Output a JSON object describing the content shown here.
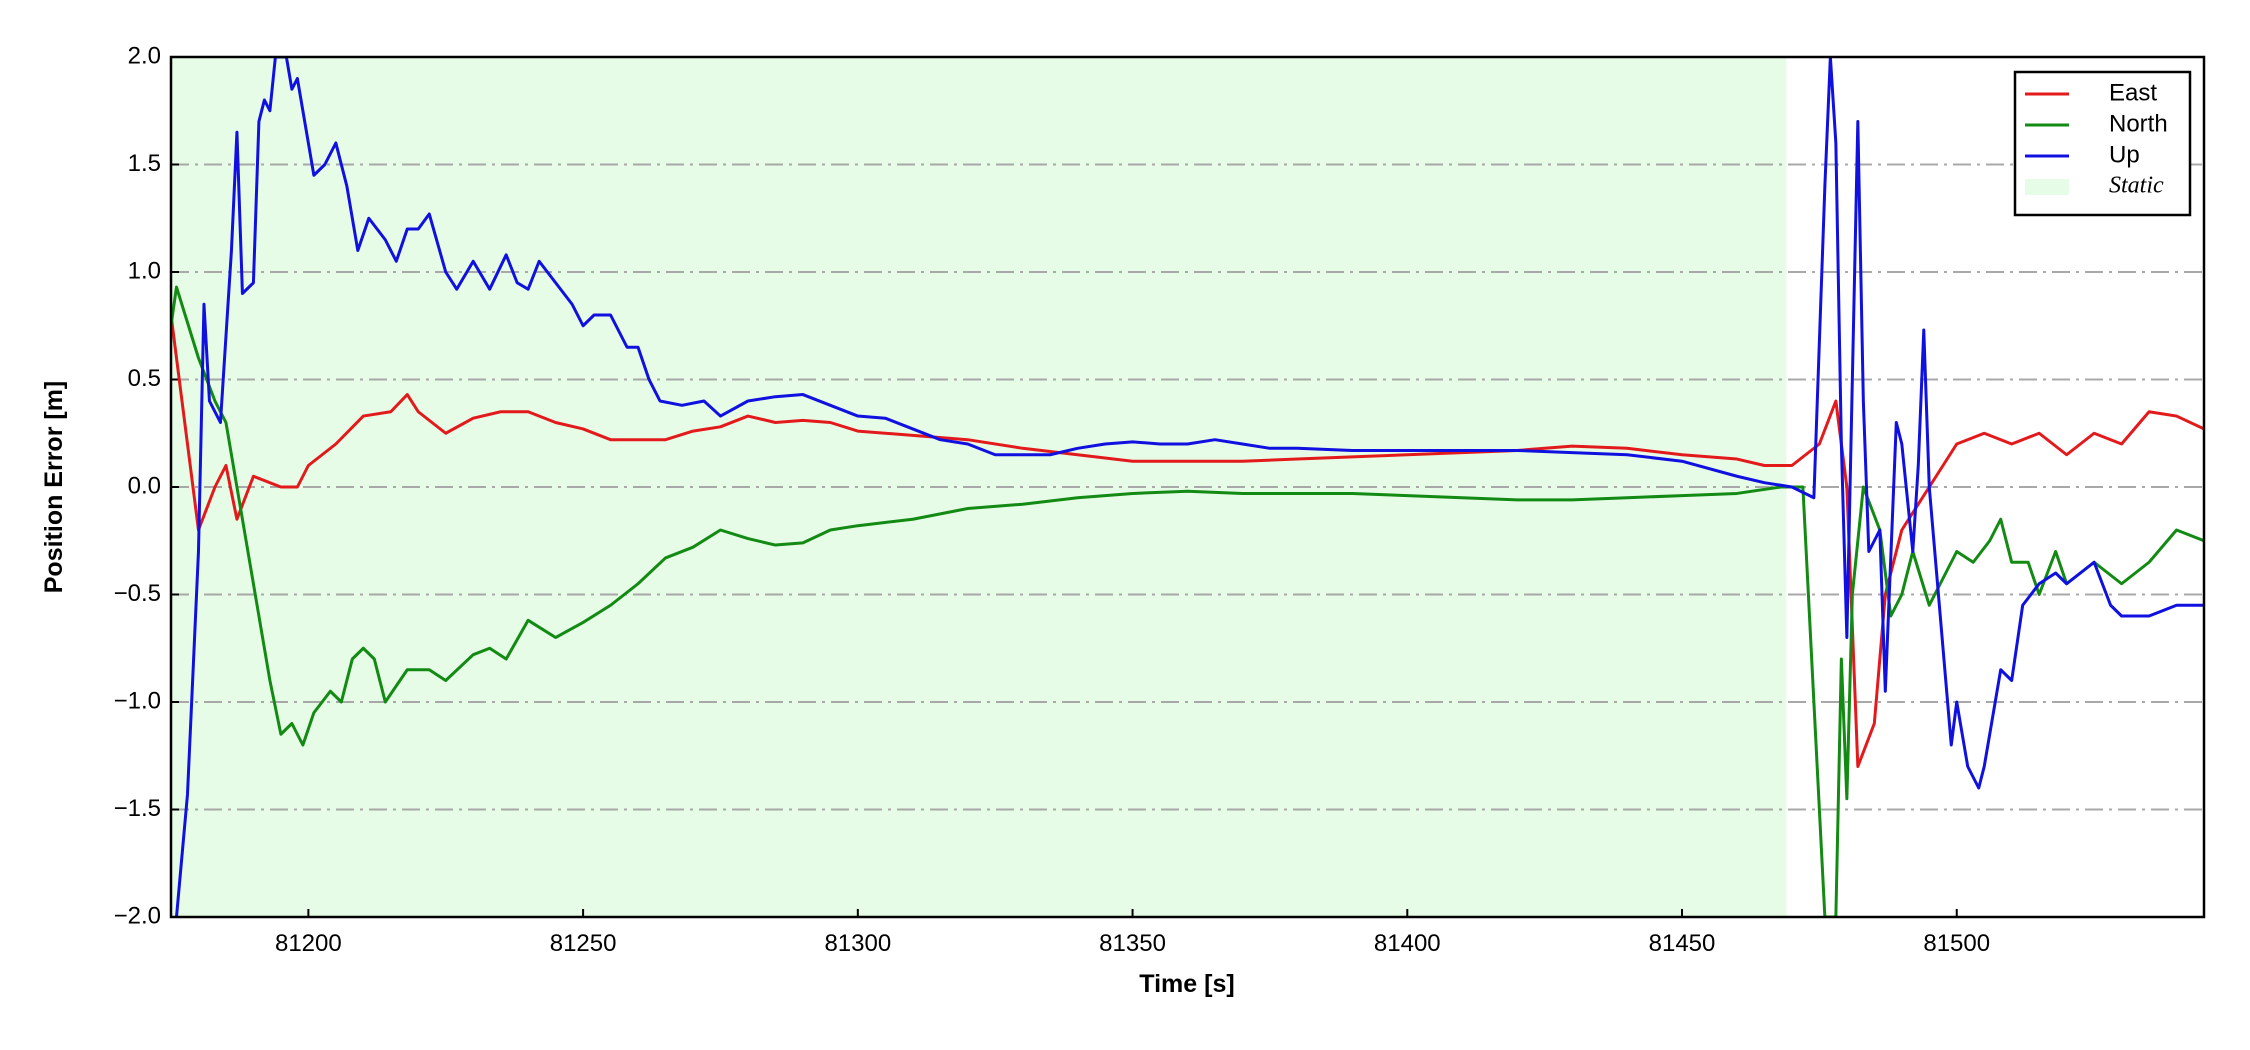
{
  "chart_data": {
    "type": "line",
    "xlabel": "Time [s]",
    "ylabel": "Position Error [m]",
    "xlim": [
      81175,
      81545
    ],
    "xticks": [
      81200,
      81250,
      81300,
      81350,
      81400,
      81450,
      81500
    ],
    "ylim": [
      -2,
      2
    ],
    "yticks": [
      {
        "value": -2,
        "label": "−2.0"
      },
      {
        "value": -1.5,
        "label": "−1.5"
      },
      {
        "value": -1,
        "label": "−1.0"
      },
      {
        "value": -0.5,
        "label": "−0.5"
      },
      {
        "value": 0,
        "label": "0.0"
      },
      {
        "value": 0.5,
        "label": "0.5"
      },
      {
        "value": 1,
        "label": "1.0"
      },
      {
        "value": 1.5,
        "label": "1.5"
      },
      {
        "value": 2,
        "label": "2.0"
      }
    ],
    "grid": true,
    "legend": "upper right",
    "static_region": {
      "name": "Static",
      "span": [
        81175,
        81469
      ],
      "color": "#e6fce6"
    },
    "series": [
      {
        "name": "East",
        "color": "#e31a1c",
        "x": [
          81175,
          81177,
          81180,
          81183,
          81185,
          81187,
          81190,
          81195,
          81198,
          81200,
          81205,
          81210,
          81215,
          81218,
          81220,
          81225,
          81230,
          81235,
          81240,
          81245,
          81250,
          81255,
          81260,
          81265,
          81270,
          81275,
          81280,
          81285,
          81290,
          81295,
          81300,
          81310,
          81320,
          81330,
          81340,
          81350,
          81360,
          81370,
          81380,
          81390,
          81400,
          81410,
          81420,
          81430,
          81440,
          81450,
          81460,
          81465,
          81470,
          81475,
          81478,
          81480,
          81482,
          81485,
          81487,
          81490,
          81495,
          81500,
          81505,
          81510,
          81515,
          81520,
          81525,
          81530,
          81535,
          81540,
          81545
        ],
        "values": [
          0.8,
          0.4,
          -0.2,
          0.0,
          0.1,
          -0.15,
          0.05,
          0.0,
          0.0,
          0.1,
          0.2,
          0.33,
          0.35,
          0.43,
          0.35,
          0.25,
          0.32,
          0.35,
          0.35,
          0.3,
          0.27,
          0.22,
          0.22,
          0.22,
          0.26,
          0.28,
          0.33,
          0.3,
          0.31,
          0.3,
          0.26,
          0.24,
          0.22,
          0.18,
          0.15,
          0.12,
          0.12,
          0.12,
          0.13,
          0.14,
          0.15,
          0.16,
          0.17,
          0.19,
          0.18,
          0.15,
          0.13,
          0.1,
          0.1,
          0.2,
          0.4,
          0.0,
          -1.3,
          -1.1,
          -0.5,
          -0.2,
          0.0,
          0.2,
          0.25,
          0.2,
          0.25,
          0.15,
          0.25,
          0.2,
          0.35,
          0.33,
          0.27
        ]
      },
      {
        "name": "North",
        "color": "#138a13",
        "x": [
          81175,
          81176,
          81180,
          81183,
          81185,
          81187,
          81189,
          81191,
          81193,
          81195,
          81197,
          81199,
          81201,
          81204,
          81206,
          81208,
          81210,
          81212,
          81214,
          81218,
          81222,
          81225,
          81230,
          81233,
          81236,
          81240,
          81245,
          81250,
          81255,
          81260,
          81265,
          81270,
          81275,
          81280,
          81285,
          81290,
          81295,
          81300,
          81310,
          81320,
          81330,
          81340,
          81350,
          81360,
          81370,
          81380,
          81390,
          81400,
          81410,
          81420,
          81430,
          81440,
          81450,
          81460,
          81468,
          81472,
          81474,
          81476,
          81478,
          81479,
          81480,
          81481,
          81483,
          81486,
          81488,
          81490,
          81492,
          81495,
          81498,
          81500,
          81503,
          81506,
          81508,
          81510,
          81513,
          81515,
          81518,
          81520,
          81525,
          81530,
          81535,
          81540,
          81545
        ],
        "values": [
          0.75,
          0.93,
          0.6,
          0.4,
          0.3,
          0.0,
          -0.3,
          -0.6,
          -0.9,
          -1.15,
          -1.1,
          -1.2,
          -1.05,
          -0.95,
          -1.0,
          -0.8,
          -0.75,
          -0.8,
          -1.0,
          -0.85,
          -0.85,
          -0.9,
          -0.78,
          -0.75,
          -0.8,
          -0.62,
          -0.7,
          -0.63,
          -0.55,
          -0.45,
          -0.33,
          -0.28,
          -0.2,
          -0.24,
          -0.27,
          -0.26,
          -0.2,
          -0.18,
          -0.15,
          -0.1,
          -0.08,
          -0.05,
          -0.03,
          -0.02,
          -0.03,
          -0.03,
          -0.03,
          -0.04,
          -0.05,
          -0.06,
          -0.06,
          -0.05,
          -0.04,
          -0.03,
          0.0,
          0.0,
          -1.0,
          -2.0,
          -2.0,
          -0.8,
          -1.45,
          -0.5,
          0.0,
          -0.2,
          -0.6,
          -0.5,
          -0.3,
          -0.55,
          -0.4,
          -0.3,
          -0.35,
          -0.25,
          -0.15,
          -0.35,
          -0.35,
          -0.5,
          -0.3,
          -0.45,
          -0.35,
          -0.45,
          -0.35,
          -0.2,
          -0.25
        ]
      },
      {
        "name": "Up",
        "color": "#1010e0",
        "x": [
          81176,
          81178,
          81180,
          81181,
          81182,
          81184,
          81186,
          81187,
          81188,
          81190,
          81191,
          81192,
          81193,
          81194,
          81196,
          81197,
          81198,
          81199,
          81201,
          81203,
          81205,
          81207,
          81209,
          81211,
          81214,
          81216,
          81218,
          81220,
          81222,
          81225,
          81227,
          81230,
          81233,
          81236,
          81238,
          81240,
          81242,
          81245,
          81248,
          81250,
          81252,
          81255,
          81258,
          81260,
          81262,
          81264,
          81268,
          81272,
          81275,
          81280,
          81285,
          81290,
          81295,
          81300,
          81305,
          81310,
          81315,
          81320,
          81325,
          81330,
          81335,
          81340,
          81345,
          81350,
          81355,
          81360,
          81365,
          81370,
          81375,
          81380,
          81390,
          81400,
          81410,
          81420,
          81430,
          81440,
          81450,
          81460,
          81465,
          81470,
          81474,
          81476,
          81477,
          81478,
          81479,
          81480,
          81482,
          81483,
          81484,
          81486,
          81487,
          81489,
          81490,
          81492,
          81493,
          81494,
          81495,
          81497,
          81499,
          81500,
          81502,
          81504,
          81505,
          81507,
          81508,
          81510,
          81512,
          81515,
          81518,
          81520,
          81525,
          81528,
          81530,
          81535,
          81540,
          81545
        ],
        "values": [
          -2.0,
          -1.43,
          -0.3,
          0.85,
          0.4,
          0.3,
          1.1,
          1.65,
          0.9,
          0.95,
          1.7,
          1.8,
          1.75,
          2.0,
          2.0,
          1.85,
          1.9,
          1.75,
          1.45,
          1.5,
          1.6,
          1.4,
          1.1,
          1.25,
          1.15,
          1.05,
          1.2,
          1.2,
          1.27,
          1.0,
          0.92,
          1.05,
          0.92,
          1.08,
          0.95,
          0.92,
          1.05,
          0.95,
          0.85,
          0.75,
          0.8,
          0.8,
          0.65,
          0.65,
          0.5,
          0.4,
          0.38,
          0.4,
          0.33,
          0.4,
          0.42,
          0.43,
          0.38,
          0.33,
          0.32,
          0.27,
          0.22,
          0.2,
          0.15,
          0.15,
          0.15,
          0.18,
          0.2,
          0.21,
          0.2,
          0.2,
          0.22,
          0.2,
          0.18,
          0.18,
          0.17,
          0.17,
          0.17,
          0.17,
          0.16,
          0.15,
          0.12,
          0.05,
          0.02,
          0.0,
          -0.05,
          1.4,
          2.0,
          1.6,
          0.2,
          -0.7,
          1.7,
          0.4,
          -0.3,
          -0.2,
          -0.95,
          0.3,
          0.2,
          -0.3,
          0.1,
          0.73,
          0.0,
          -0.6,
          -1.2,
          -1.0,
          -1.3,
          -1.4,
          -1.3,
          -1.0,
          -0.85,
          -0.9,
          -0.55,
          -0.45,
          -0.4,
          -0.45,
          -0.35,
          -0.55,
          -0.6,
          -0.6,
          -0.55,
          -0.55
        ]
      }
    ]
  }
}
